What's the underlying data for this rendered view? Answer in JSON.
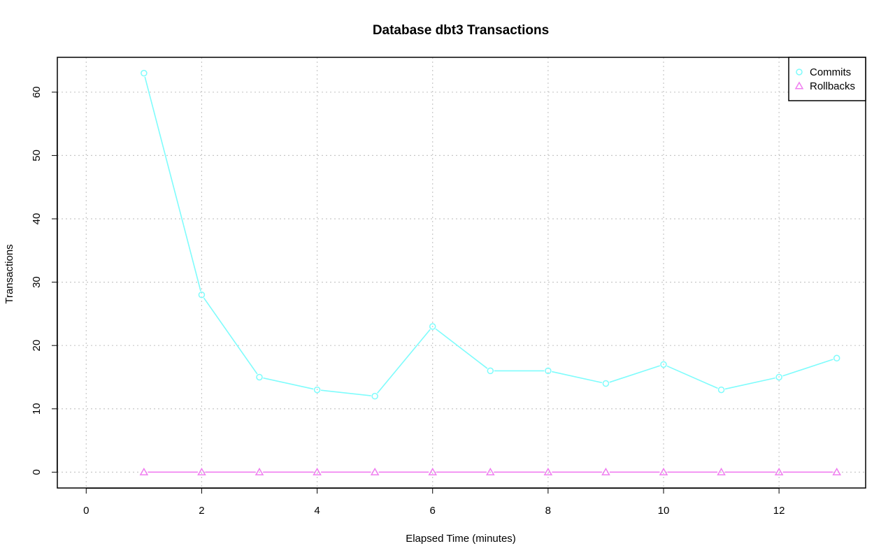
{
  "chart_data": {
    "type": "line",
    "title": "Database dbt3 Transactions",
    "xlabel": "Elapsed Time (minutes)",
    "ylabel": "Transactions",
    "xlim": [
      -0.5,
      13.5
    ],
    "ylim": [
      -2.5,
      65.5
    ],
    "x_ticks": [
      0,
      2,
      4,
      6,
      8,
      10,
      12
    ],
    "y_ticks": [
      0,
      10,
      20,
      30,
      40,
      50,
      60
    ],
    "grid": true,
    "legend_position": "top-right",
    "x": [
      1,
      2,
      3,
      4,
      5,
      6,
      7,
      8,
      9,
      10,
      11,
      12,
      13
    ],
    "series": [
      {
        "name": "Commits",
        "marker": "circle",
        "color": "#7ffcfc",
        "values": [
          63,
          28,
          15,
          13,
          12,
          23,
          16,
          16,
          14,
          17,
          13,
          15,
          18
        ]
      },
      {
        "name": "Rollbacks",
        "marker": "triangle",
        "color": "#f07ef0",
        "values": [
          0,
          0,
          0,
          0,
          0,
          0,
          0,
          0,
          0,
          0,
          0,
          0,
          0
        ]
      }
    ]
  }
}
